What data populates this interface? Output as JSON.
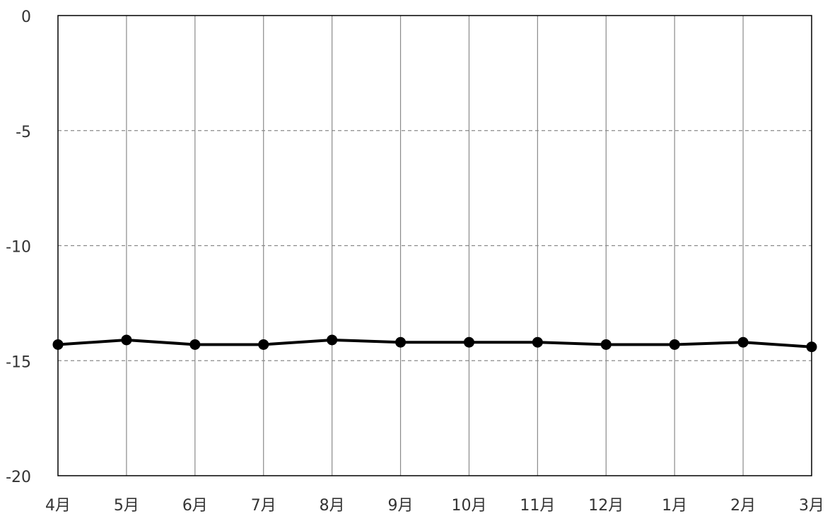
{
  "chart_data": {
    "type": "line",
    "categories": [
      "4月",
      "5月",
      "6月",
      "7月",
      "8月",
      "9月",
      "10月",
      "11月",
      "12月",
      "1月",
      "2月",
      "3月"
    ],
    "series": [
      {
        "values": [
          -14.3,
          -14.1,
          -14.3,
          -14.3,
          -14.1,
          -14.2,
          -14.2,
          -14.2,
          -14.3,
          -14.3,
          -14.2,
          -14.4
        ]
      }
    ],
    "ylim": [
      -20,
      0
    ],
    "yticks": [
      0,
      -5,
      -10,
      -15,
      -20
    ],
    "ytick_labels": [
      "0",
      "-5",
      "-10",
      "-15",
      "-20"
    ],
    "grid": {
      "vertical": "solid",
      "horizontal": "dashed"
    },
    "colors": {
      "line": "#000000",
      "marker": "#000000",
      "vgrid": "#8a8a8a",
      "hgrid": "#8a8a8a",
      "frame": "#000000"
    }
  }
}
